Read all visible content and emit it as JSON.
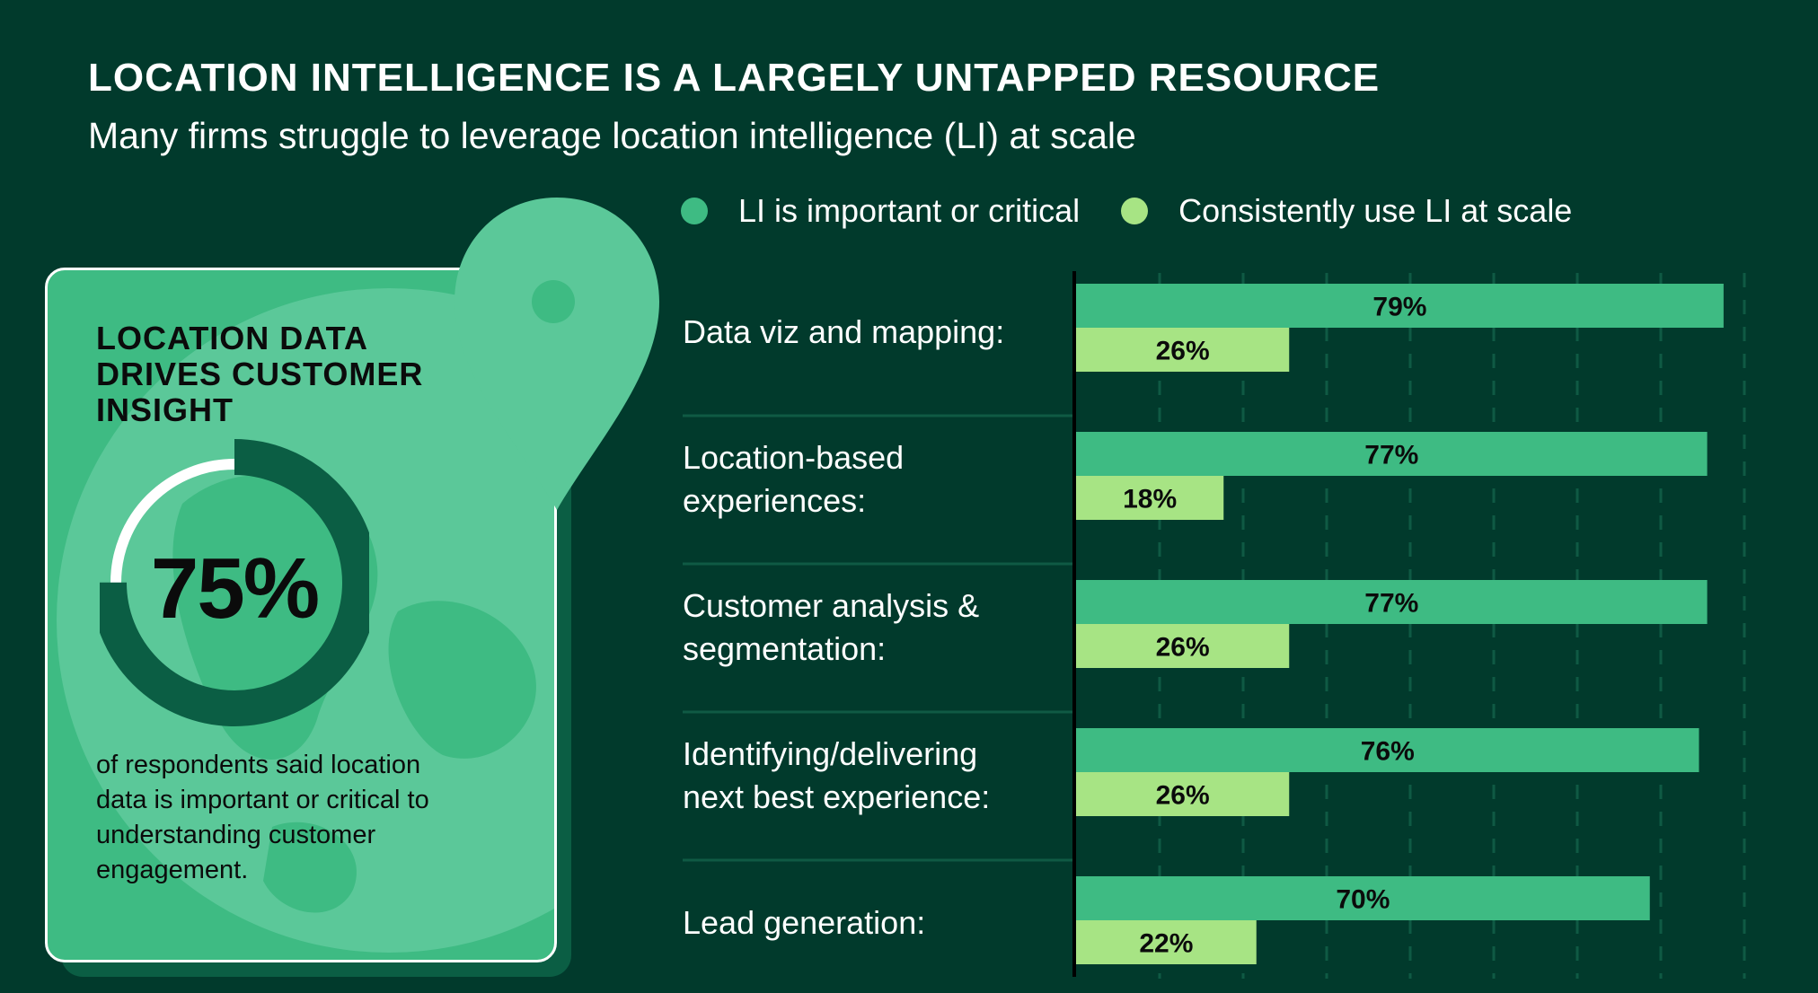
{
  "header": {
    "title": "LOCATION INTELLIGENCE IS A LARGELY UNTAPPED RESOURCE",
    "subtitle": "Many firms struggle to leverage location intelligence (LI) at scale"
  },
  "card": {
    "title": "LOCATION DATA DRIVES CUSTOMER INSIGHT",
    "value_label": "75%",
    "value": 75,
    "text": "of respondents said location data is important or critical to understanding customer engagement."
  },
  "colors": {
    "background": "#013a2c",
    "important": "#3ebb83",
    "consistent": "#a7e484",
    "card": "#3ebb83",
    "card_light": "#5bc899",
    "donut_dark": "#0b5e44"
  },
  "chart_data": {
    "type": "bar",
    "orientation": "horizontal",
    "categories": [
      "Data viz and mapping:",
      "Location-based experiences:",
      "Customer analysis & segmentation:",
      "Identifying/delivering next best experience:",
      "Lead generation:"
    ],
    "series": [
      {
        "name": "LI is important or critical",
        "values": [
          79,
          77,
          77,
          76,
          70
        ],
        "color": "#3ebb83"
      },
      {
        "name": "Consistently use LI at scale",
        "values": [
          26,
          18,
          26,
          26,
          22
        ],
        "color": "#a7e484"
      }
    ],
    "data_labels": [
      [
        "79%",
        "77%",
        "77%",
        "76%",
        "70%"
      ],
      [
        "26%",
        "18%",
        "26%",
        "26%",
        "22%"
      ]
    ],
    "xlim": [
      0,
      80
    ],
    "grid": true,
    "legend_position": "top"
  }
}
